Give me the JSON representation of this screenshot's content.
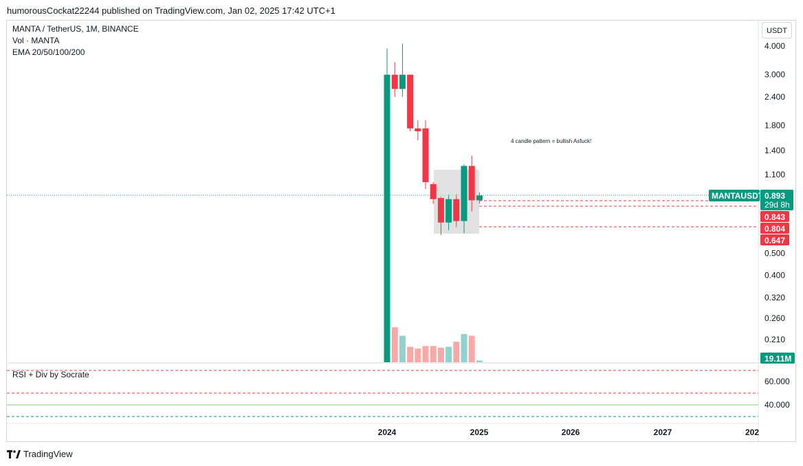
{
  "header": {
    "published": "humorousCockat22244 published on TradingView.com, Jan 02, 2025 17:42 UTC+1"
  },
  "legend": {
    "symbol": "MANTA / TetherUS, 1M, BINANCE",
    "volume": "Vol · MANTA",
    "ema": "EMA 20/50/100/200"
  },
  "unit_button": "USDT",
  "rsi": {
    "title": "RSI + Div by Socrate",
    "levels": [
      "60.000",
      "40.000"
    ]
  },
  "annotation": "4 candle pattern = bullish Asfuck!",
  "price_labels": {
    "symbol_tag": "MANTAUSDT",
    "last": "0.893",
    "countdown": "29d 8h",
    "level1": "0.843",
    "level2": "0.804",
    "level3": "0.647",
    "volume": "19.11M"
  },
  "colors": {
    "up": "#089981",
    "down": "#f23645",
    "up_vol": "#92d2cc",
    "down_vol": "#f7a9a7",
    "box": "#d9d9d9"
  },
  "footer": {
    "brand": "TradingView",
    "logo_icon": "tradingview-logo-icon"
  },
  "chart_data": {
    "type": "candlestick",
    "symbol": "MANTA / TetherUS",
    "interval": "1M",
    "y_scale": "log",
    "y_ticks": [
      "4.000",
      "3.000",
      "2.400",
      "1.800",
      "1.400",
      "1.100",
      "0.500",
      "0.400",
      "0.320",
      "0.260",
      "0.210"
    ],
    "x_ticks": [
      "2024",
      "2025",
      "2026",
      "2027",
      "202"
    ],
    "candles": [
      {
        "date": "2024-01",
        "open": 0.18,
        "high": 3.9,
        "low": 0.18,
        "close": 3.0
      },
      {
        "date": "2024-02",
        "open": 3.0,
        "high": 3.4,
        "low": 2.4,
        "close": 2.6
      },
      {
        "date": "2024-03",
        "open": 2.6,
        "high": 4.1,
        "low": 2.4,
        "close": 3.0
      },
      {
        "date": "2024-04",
        "open": 3.0,
        "high": 3.0,
        "low": 1.7,
        "close": 1.75
      },
      {
        "date": "2024-05",
        "open": 1.75,
        "high": 1.9,
        "low": 1.55,
        "close": 1.7
      },
      {
        "date": "2024-06",
        "open": 1.75,
        "high": 1.9,
        "low": 0.95,
        "close": 1.02
      },
      {
        "date": "2024-07",
        "open": 1.0,
        "high": 1.02,
        "low": 0.82,
        "close": 0.86
      },
      {
        "date": "2024-08",
        "open": 0.87,
        "high": 0.88,
        "low": 0.6,
        "close": 0.68
      },
      {
        "date": "2024-09",
        "open": 0.68,
        "high": 0.9,
        "low": 0.63,
        "close": 0.86
      },
      {
        "date": "2024-10",
        "open": 0.86,
        "high": 0.9,
        "low": 0.65,
        "close": 0.69
      },
      {
        "date": "2024-11",
        "open": 0.69,
        "high": 1.22,
        "low": 0.61,
        "close": 1.2
      },
      {
        "date": "2024-12",
        "open": 1.2,
        "high": 1.33,
        "low": 0.76,
        "close": 0.85
      },
      {
        "date": "2025-01",
        "open": 0.85,
        "high": 0.92,
        "low": 0.82,
        "close": 0.893
      }
    ],
    "volume_series": {
      "name": "Vol · MANTA",
      "values": [
        1.0,
        0.41,
        0.31,
        0.18,
        0.16,
        0.19,
        0.19,
        0.17,
        0.18,
        0.24,
        0.33,
        0.31,
        0.02
      ]
    },
    "horizontal_levels": [
      0.893,
      0.87,
      0.804
    ]
  }
}
